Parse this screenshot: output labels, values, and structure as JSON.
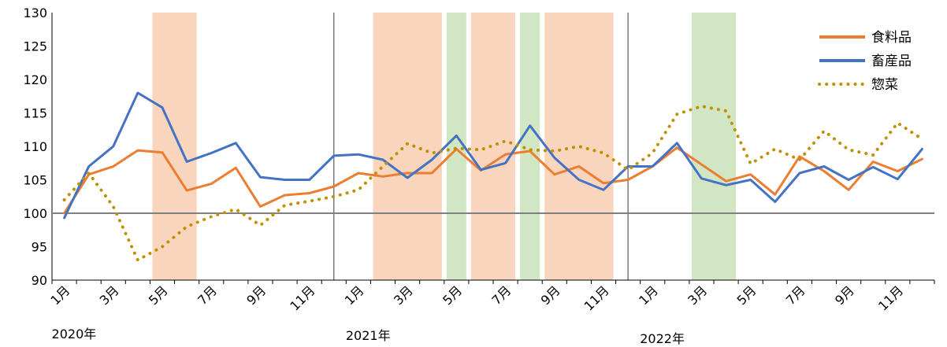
{
  "chart_data": {
    "type": "line",
    "title": "",
    "xlabel": "",
    "ylabel": "",
    "ylim": [
      90,
      130
    ],
    "yticks": [
      90,
      95,
      100,
      105,
      110,
      115,
      120,
      125,
      130
    ],
    "reference_line": 100,
    "grid": false,
    "legend_position": "top-right",
    "categories": [
      "1月",
      "2月",
      "3月",
      "4月",
      "5月",
      "6月",
      "7月",
      "8月",
      "9月",
      "10月",
      "11月",
      "12月",
      "1月",
      "2月",
      "3月",
      "4月",
      "5月",
      "6月",
      "7月",
      "8月",
      "9月",
      "10月",
      "11月",
      "12月",
      "1月",
      "2月",
      "3月",
      "4月",
      "5月",
      "6月",
      "7月",
      "8月",
      "9月",
      "10月",
      "11月",
      "12月"
    ],
    "tick_labels": [
      "1月",
      "3月",
      "5月",
      "7月",
      "9月",
      "11月",
      "1月",
      "3月",
      "5月",
      "7月",
      "9月",
      "11月",
      "1月",
      "3月",
      "5月",
      "7月",
      "9月",
      "11月"
    ],
    "year_labels": [
      "2020年",
      "2021年",
      "2022年"
    ],
    "series": [
      {
        "name": "食料品",
        "color": "#ED7D31",
        "style": "solid",
        "values": [
          100.0,
          105.8,
          107.0,
          109.4,
          109.1,
          103.4,
          104.4,
          106.8,
          101.0,
          102.7,
          103.0,
          104.0,
          106.0,
          105.5,
          106.0,
          106.0,
          109.6,
          106.4,
          108.8,
          109.3,
          105.8,
          107.0,
          104.5,
          105.0,
          107.0,
          109.8,
          107.3,
          104.8,
          105.8,
          102.8,
          108.5,
          106.3,
          103.5,
          107.7,
          106.3,
          108.1
        ]
      },
      {
        "name": "畜産品",
        "color": "#4472C4",
        "style": "solid",
        "values": [
          99.3,
          107.0,
          110.0,
          118.0,
          115.8,
          107.7,
          109.0,
          110.5,
          105.4,
          105.0,
          105.0,
          108.6,
          108.8,
          108.0,
          105.3,
          108.0,
          111.6,
          106.5,
          107.5,
          113.1,
          108.3,
          105.0,
          103.5,
          107.0,
          107.0,
          110.5,
          105.2,
          104.2,
          105.0,
          101.7,
          106.0,
          107.0,
          105.0,
          106.9,
          105.1,
          109.6
        ]
      },
      {
        "name": "惣菜",
        "color": "#BF9000",
        "style": "dotted",
        "values": [
          102.0,
          106.0,
          101.0,
          93.0,
          95.0,
          98.0,
          99.5,
          100.6,
          98.2,
          101.2,
          101.8,
          102.5,
          103.5,
          107.0,
          110.4,
          109.0,
          109.7,
          109.5,
          110.8,
          109.5,
          109.3,
          110.0,
          109.0,
          106.5,
          109.0,
          114.8,
          116.0,
          115.3,
          107.4,
          109.6,
          108.0,
          112.3,
          109.5,
          108.7,
          113.5,
          111.1
        ]
      }
    ],
    "shaded_periods": [
      {
        "color": "#F8CBAD",
        "start": 4,
        "end": 5
      },
      {
        "color": "#F8CBAD",
        "start": 13,
        "end": 15
      },
      {
        "color": "#C5E0B4",
        "start": 16,
        "end": 16
      },
      {
        "color": "#F8CBAD",
        "start": 17,
        "end": 18
      },
      {
        "color": "#C5E0B4",
        "start": 19,
        "end": 19
      },
      {
        "color": "#F8CBAD",
        "start": 20,
        "end": 22
      },
      {
        "color": "#C5E0B4",
        "start": 26,
        "end": 27
      }
    ]
  }
}
